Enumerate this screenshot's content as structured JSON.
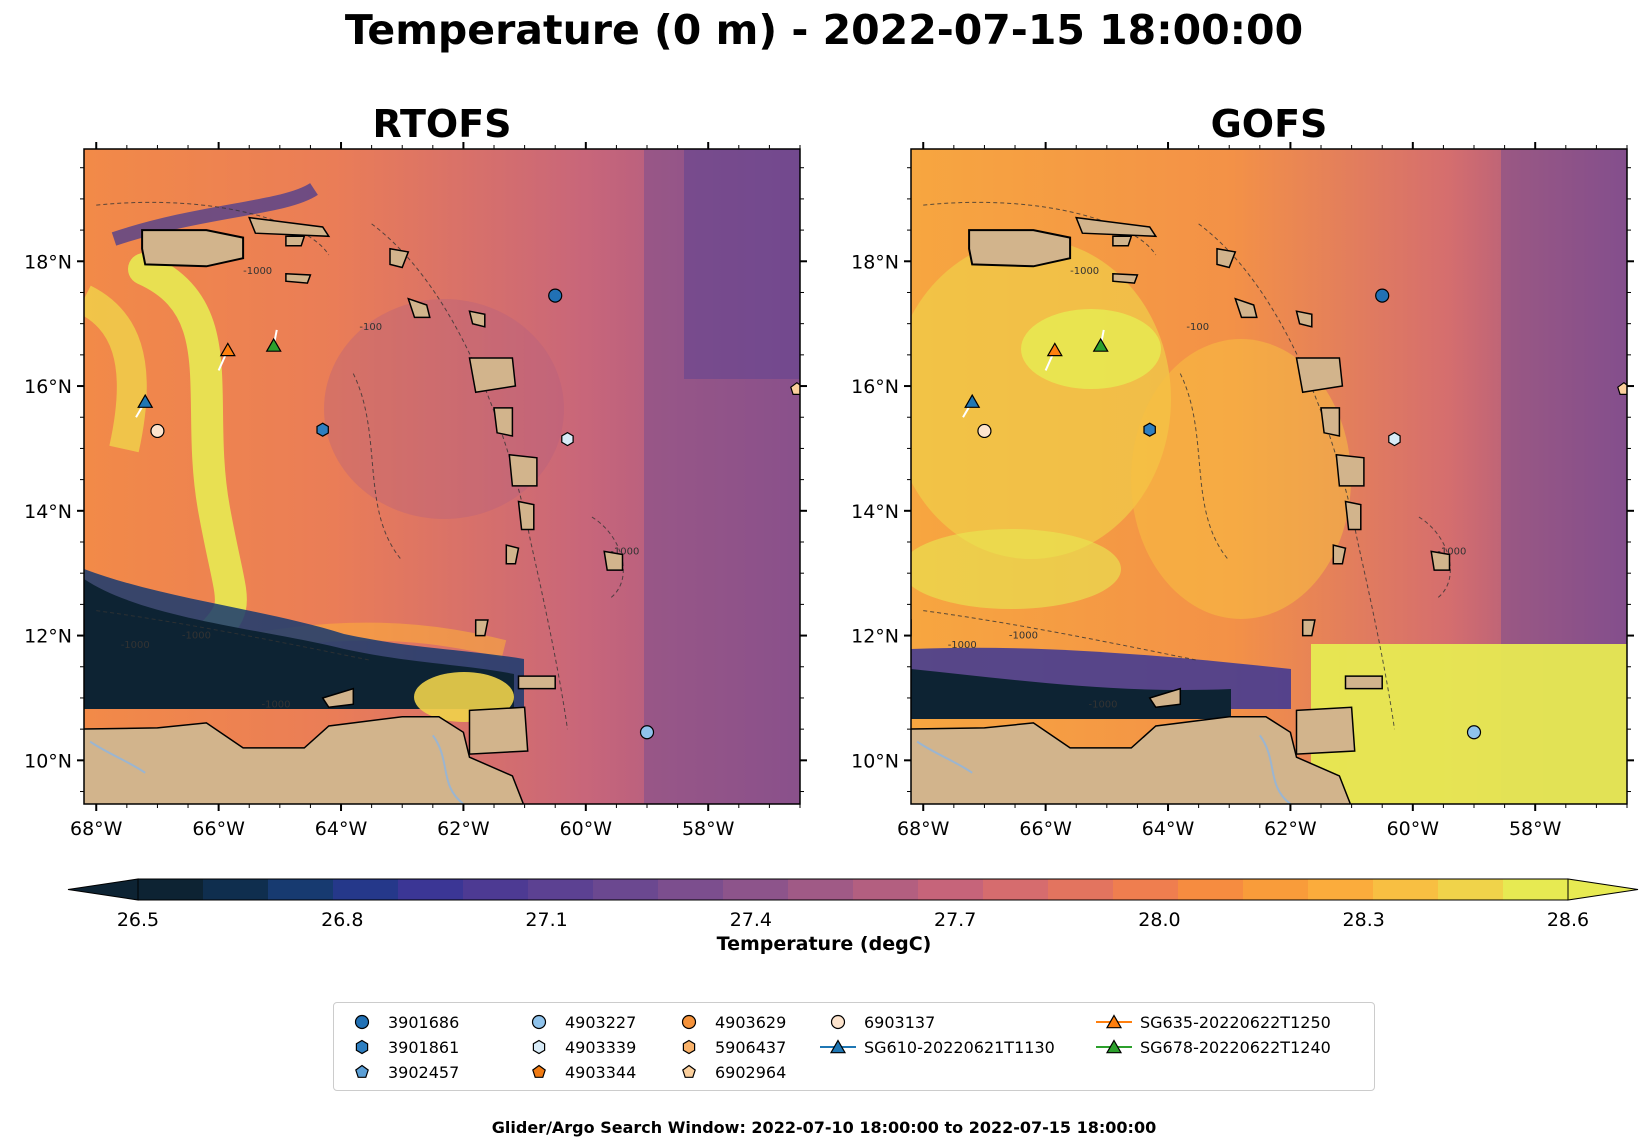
{
  "title": "Temperature (0 m) - 2022-07-15 18:00:00",
  "panels": [
    {
      "title": "RTOFS",
      "model": "rtofs"
    },
    {
      "title": "GOFS",
      "model": "gofs"
    }
  ],
  "axes": {
    "lon_ticks": [
      "68°W",
      "66°W",
      "64°W",
      "62°W",
      "60°W",
      "58°W"
    ],
    "lat_ticks": [
      "18°N",
      "16°N",
      "14°N",
      "12°N",
      "10°N"
    ],
    "lon_range": [
      -68.2,
      -56.5
    ],
    "lat_range": [
      9.3,
      19.8
    ],
    "lon_tick_values": [
      -68,
      -66,
      -64,
      -62,
      -60,
      -58
    ],
    "lat_tick_values": [
      18,
      16,
      14,
      12,
      10
    ]
  },
  "colorbar": {
    "label": "Temperature (degC)",
    "min": 26.5,
    "max": 28.6,
    "ticks": [
      "26.5",
      "26.8",
      "27.1",
      "27.4",
      "27.7",
      "28.0",
      "28.3",
      "28.6"
    ],
    "tick_values": [
      26.5,
      26.8,
      27.1,
      27.4,
      27.7,
      28.0,
      28.3,
      28.6
    ],
    "colors": [
      "#0d2333",
      "#0f2e4e",
      "#173a70",
      "#25388a",
      "#3b3695",
      "#4d3a93",
      "#5c4192",
      "#6b4890",
      "#7c4e8e",
      "#8d548b",
      "#a05a86",
      "#b35f80",
      "#c6647a",
      "#d66c6e",
      "#e3745f",
      "#ef7e4f",
      "#f68c40",
      "#f99c3a",
      "#fbac3c",
      "#f8bf42",
      "#f0d34a",
      "#e7ea52"
    ]
  },
  "contour_labels": [
    "-1000",
    "-100",
    "-1000",
    "-1000",
    "-1000",
    "-1000"
  ],
  "stations": [
    {
      "id": "3901686",
      "marker": "circle",
      "color": "#2171b5",
      "lon": -60.5,
      "lat": 17.45
    },
    {
      "id": "3901861",
      "marker": "hexagon",
      "color": "#2d7ec0",
      "lon": -64.3,
      "lat": 15.3
    },
    {
      "id": "3902457",
      "marker": "pentagon",
      "color": "#5b9fd6",
      "lon": null,
      "lat": null
    },
    {
      "id": "4903227",
      "marker": "circle",
      "color": "#8fc3ec",
      "lon": -59.0,
      "lat": 10.45
    },
    {
      "id": "4903339",
      "marker": "hexagon",
      "color": "#d8ebf7",
      "lon": -60.3,
      "lat": 15.15
    },
    {
      "id": "4903344",
      "marker": "pentagon",
      "color": "#f07a12",
      "lon": null,
      "lat": null
    },
    {
      "id": "4903629",
      "marker": "circle",
      "color": "#f5923a",
      "lon": null,
      "lat": null
    },
    {
      "id": "5906437",
      "marker": "hexagon",
      "color": "#f9b26a",
      "lon": null,
      "lat": null
    },
    {
      "id": "6902964",
      "marker": "pentagon",
      "color": "#fbcf9c",
      "lon": -56.55,
      "lat": 15.95
    },
    {
      "id": "6903137",
      "marker": "circle",
      "color": "#fde4cd",
      "lon": -67.0,
      "lat": 15.28
    },
    {
      "id": "SG610-20220621T1130",
      "marker": "triangle",
      "color": "#1f77b4",
      "lon": -67.2,
      "lat": 15.75
    },
    {
      "id": "SG635-20220622T1250",
      "marker": "triangle",
      "color": "#ff7f0e",
      "lon": -65.85,
      "lat": 16.58
    },
    {
      "id": "SG678-20220622T1240",
      "marker": "triangle",
      "color": "#2ca02c",
      "lon": -65.1,
      "lat": 16.65
    }
  ],
  "footer": "Glider/Argo Search Window: 2022-07-10 18:00:00 to 2022-07-15 18:00:00"
}
